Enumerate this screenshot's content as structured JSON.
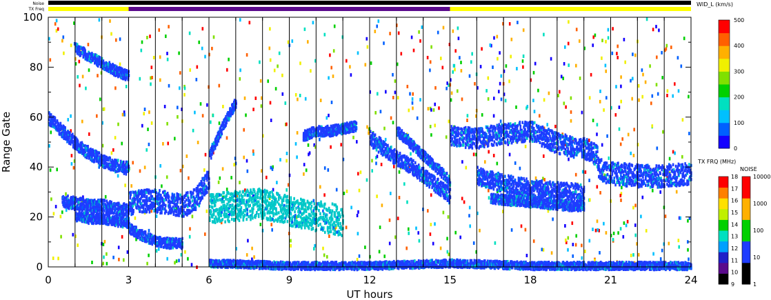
{
  "chart_data": {
    "type": "heatmap",
    "xlabel": "UT hours",
    "ylabel": "Range Gate",
    "xlim": [
      0,
      24
    ],
    "ylim": [
      0,
      100
    ],
    "x_ticks": [
      "0",
      "3",
      "6",
      "9",
      "12",
      "15",
      "18",
      "21",
      "24"
    ],
    "y_ticks": [
      "0",
      "20",
      "40",
      "60",
      "80",
      "100"
    ],
    "strip_labels": {
      "noise": "Noise",
      "txfreq": "TX Freq"
    },
    "tx_freq_strip": [
      {
        "from": 0,
        "to": 3,
        "color": "#ffff00"
      },
      {
        "from": 3,
        "to": 15,
        "color": "#5a0a8c"
      },
      {
        "from": 15,
        "to": 24,
        "color": "#ffff00"
      }
    ],
    "scan_boundaries": [
      1,
      2,
      3,
      4,
      5,
      6,
      7,
      8,
      9,
      10,
      11,
      12,
      13,
      14,
      15,
      16,
      17,
      18,
      19,
      20,
      21,
      22,
      23
    ],
    "echo_bands": [
      {
        "name": "early-high-arc",
        "x": [
          0,
          0.5,
          1,
          1.5,
          2,
          2.5,
          3
        ],
        "y": [
          60,
          55,
          50,
          46,
          43,
          41,
          40
        ],
        "width": 5,
        "color": "#1e3cff"
      },
      {
        "name": "early-top-arc",
        "x": [
          1,
          1.5,
          2,
          2.5,
          3
        ],
        "y": [
          88,
          85,
          82,
          79,
          77
        ],
        "width": 4,
        "color": "#1e3cff"
      },
      {
        "name": "early-low-band",
        "x": [
          0.5,
          1,
          1.5,
          2,
          2.5,
          3
        ],
        "y": [
          27,
          26,
          25,
          25,
          24,
          23
        ],
        "width": 5,
        "color": "#1e3cff"
      },
      {
        "name": "early-low-band-2",
        "x": [
          1,
          1.5,
          2,
          2.5,
          3
        ],
        "y": [
          21,
          20,
          20,
          19,
          18
        ],
        "width": 4,
        "color": "#1e3cff"
      },
      {
        "name": "dawn-low-arc",
        "x": [
          3,
          3.5,
          4,
          4.5,
          5
        ],
        "y": [
          16,
          13,
          11,
          10,
          10
        ],
        "width": 4,
        "color": "#1e3cff"
      },
      {
        "name": "morning-band",
        "x": [
          3,
          3.5,
          4,
          4.5,
          5,
          5.5,
          6
        ],
        "y": [
          26,
          27,
          27,
          26,
          25,
          28,
          36
        ],
        "width": 9,
        "color": "#1e3cff"
      },
      {
        "name": "morning-rise",
        "x": [
          6,
          6.5,
          7
        ],
        "y": [
          45,
          57,
          67
        ],
        "width": 4,
        "color": "#1e3cff"
      },
      {
        "name": "midday-mixed",
        "x": [
          6,
          7,
          8,
          9,
          10,
          11
        ],
        "y": [
          24,
          25,
          26,
          23,
          21,
          19
        ],
        "width": 12,
        "color": "#00c8c8"
      },
      {
        "name": "midday-cluster",
        "x": [
          9.5,
          10,
          10.5,
          11,
          11.5
        ],
        "y": [
          53,
          55,
          55,
          56,
          57
        ],
        "width": 4,
        "color": "#1e3cff"
      },
      {
        "name": "afternoon-decline",
        "x": [
          12,
          12.5,
          13,
          13.5,
          14,
          14.5,
          15
        ],
        "y": [
          52,
          48,
          44,
          41,
          37,
          33,
          29
        ],
        "width": 6,
        "color": "#1e3cff"
      },
      {
        "name": "afternoon-decline-2",
        "x": [
          13,
          13.5,
          14,
          14.5,
          15
        ],
        "y": [
          55,
          50,
          45,
          40,
          35
        ],
        "width": 4,
        "color": "#1e3cff"
      },
      {
        "name": "evening-upper",
        "x": [
          15,
          16,
          17,
          18,
          19,
          20,
          20.5
        ],
        "y": [
          53,
          52,
          54,
          55,
          50,
          48,
          45
        ],
        "width": 8,
        "color": "#1e3cff"
      },
      {
        "name": "evening-mid",
        "x": [
          16,
          17,
          18,
          19,
          20
        ],
        "y": [
          37,
          34,
          32,
          31,
          30
        ],
        "width": 7,
        "color": "#1e3cff"
      },
      {
        "name": "evening-mid-2",
        "x": [
          16.5,
          17.5,
          18.5,
          19.5,
          20
        ],
        "y": [
          28,
          27,
          26,
          25,
          25
        ],
        "width": 4,
        "color": "#1e3cff"
      },
      {
        "name": "night-band",
        "x": [
          20.5,
          21,
          22,
          23,
          24
        ],
        "y": [
          40,
          38,
          37,
          37,
          38
        ],
        "width": 9,
        "color": "#1e3cff"
      },
      {
        "name": "ground-scatter",
        "x": [
          6,
          9,
          12,
          15,
          18,
          21,
          24
        ],
        "y": [
          2,
          1,
          1,
          2,
          1,
          1,
          1
        ],
        "width": 3,
        "color": "#1e3cff"
      }
    ],
    "colorbar_width": {
      "title": "WID_L (km/s)",
      "ticks": [
        "0",
        "100",
        "200",
        "300",
        "400",
        "500"
      ],
      "colors": [
        "#1400ff",
        "#0060ff",
        "#00c0ff",
        "#00e0c0",
        "#00d000",
        "#80e000",
        "#f0f000",
        "#ffb000",
        "#ff6000",
        "#ff0000"
      ]
    },
    "colorbar_txfreq": {
      "title": "TX FRQ (MHz)",
      "ticks": [
        "9",
        "10",
        "11",
        "12",
        "13",
        "14",
        "15",
        "16",
        "17",
        "18"
      ],
      "colors": [
        "#000000",
        "#5a0a8c",
        "#2020c8",
        "#00a0ff",
        "#00e0c0",
        "#00d000",
        "#c0f000",
        "#ffe000",
        "#ff8000",
        "#ff0000"
      ]
    },
    "colorbar_noise": {
      "title": "NOISE",
      "ticks": [
        "1",
        "10",
        "100",
        "1000",
        "10000"
      ],
      "colors": [
        "#000000",
        "#1e3cff",
        "#00d000",
        "#ffb000",
        "#ff0000"
      ]
    }
  }
}
